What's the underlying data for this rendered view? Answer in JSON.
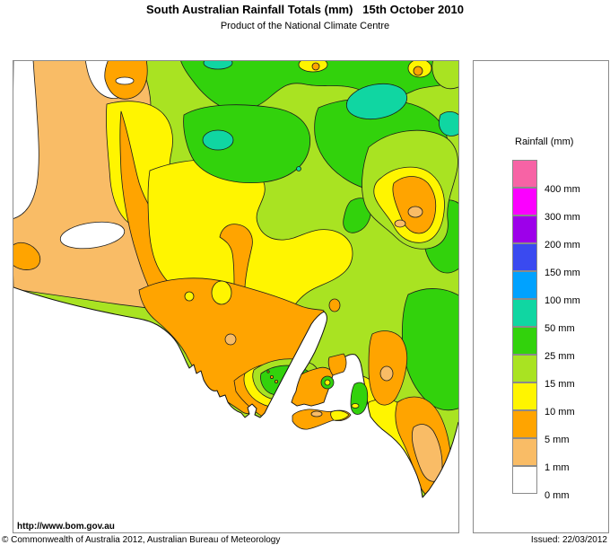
{
  "header": {
    "title": "South Australian Rainfall Totals (mm)   15th October 2010",
    "subtitle": "Product of the National Climate Centre"
  },
  "legend": {
    "title": "Rainfall (mm)",
    "items": [
      {
        "label": "400 mm",
        "color": "pink"
      },
      {
        "label": "300 mm",
        "color": "magenta"
      },
      {
        "label": "200 mm",
        "color": "purple"
      },
      {
        "label": "150 mm",
        "color": "blue"
      },
      {
        "label": "100 mm",
        "color": "light_blue"
      },
      {
        "label": "50 mm",
        "color": "teal"
      },
      {
        "label": "25 mm",
        "color": "green"
      },
      {
        "label": "15 mm",
        "color": "green_yellow"
      },
      {
        "label": "10 mm",
        "color": "yellow"
      },
      {
        "label": "5 mm",
        "color": "orange"
      },
      {
        "label": "1 mm",
        "color": "sandy"
      },
      {
        "label": "0 mm",
        "color": "white"
      }
    ]
  },
  "map": {
    "region_label": "South Australia rainfall contour map",
    "url_label": "http://www.bom.gov.au"
  },
  "footer": {
    "copyright": "© Commonwealth of Australia 2012, Australian Bureau of Meteorology",
    "issued": "Issued: 22/03/2012"
  },
  "colors": {
    "pink": "#F763A5",
    "magenta": "#FB00FF",
    "purple": "#9D00EA",
    "blue": "#3A4AF0",
    "light_blue": "#00A2FF",
    "teal": "#10D6A2",
    "green": "#32D20C",
    "green_yellow": "#A9E322",
    "yellow": "#FFF500",
    "orange": "#FFA400",
    "sandy": "#F9BC66",
    "white": "#FFFFFF",
    "contour": "#1c1c1c",
    "box_border": "#8a8a8a"
  }
}
